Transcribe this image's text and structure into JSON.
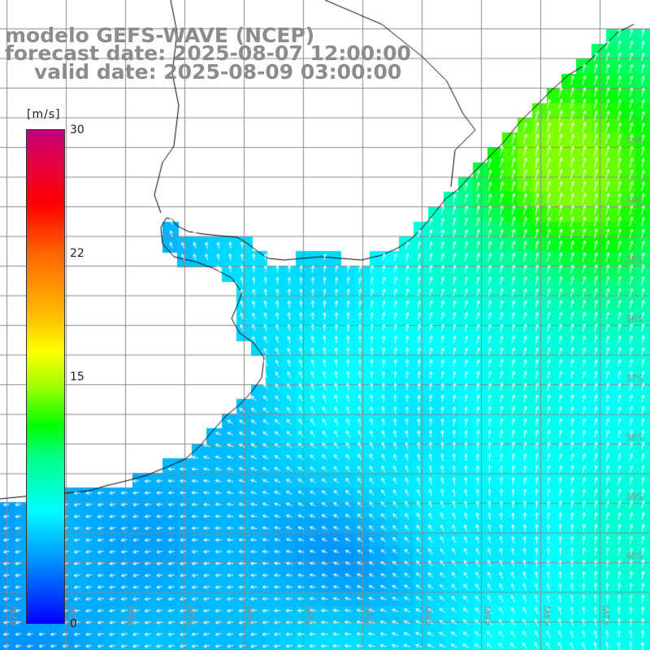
{
  "title": {
    "line1": "modelo GEFS-WAVE (NCEP)",
    "line2": "forecast date: 2025-08-07 12:00:00",
    "line3": "valid date: 2025-08-09 03:00:00"
  },
  "colorbar": {
    "unit": "[m/s]",
    "ticks": [
      {
        "value": 30,
        "label": "30"
      },
      {
        "value": 22,
        "label": "22"
      },
      {
        "value": 15,
        "label": "15"
      },
      {
        "value": 0,
        "label": "0"
      }
    ],
    "stops": [
      {
        "value": 30,
        "color": "#c0007e"
      },
      {
        "value": 27,
        "color": "#e00050"
      },
      {
        "value": 25,
        "color": "#ff0000"
      },
      {
        "value": 22,
        "color": "#ff6400"
      },
      {
        "value": 18.5,
        "color": "#ffc000"
      },
      {
        "value": 16.5,
        "color": "#ffff00"
      },
      {
        "value": 14.5,
        "color": "#a0ff00"
      },
      {
        "value": 12,
        "color": "#00ff00"
      },
      {
        "value": 10,
        "color": "#00ff80"
      },
      {
        "value": 7,
        "color": "#00ffff"
      },
      {
        "value": 4,
        "color": "#00a0ff"
      },
      {
        "value": 0,
        "color": "#0000ff"
      }
    ]
  },
  "map": {
    "land_color": "#ffffff",
    "coast_color": "#000000",
    "grid_color": "#8a8a8a",
    "arrow_color": "#ffffff",
    "lon_ticks": [
      "62W",
      "60W",
      "58W",
      "56W",
      "54W",
      "52W",
      "50W",
      "48W",
      "46W",
      "44W",
      "42W"
    ],
    "lat_ticks": [
      "33S",
      "34S",
      "35S",
      "36S",
      "37S",
      "38S",
      "39S",
      "40S"
    ]
  }
}
